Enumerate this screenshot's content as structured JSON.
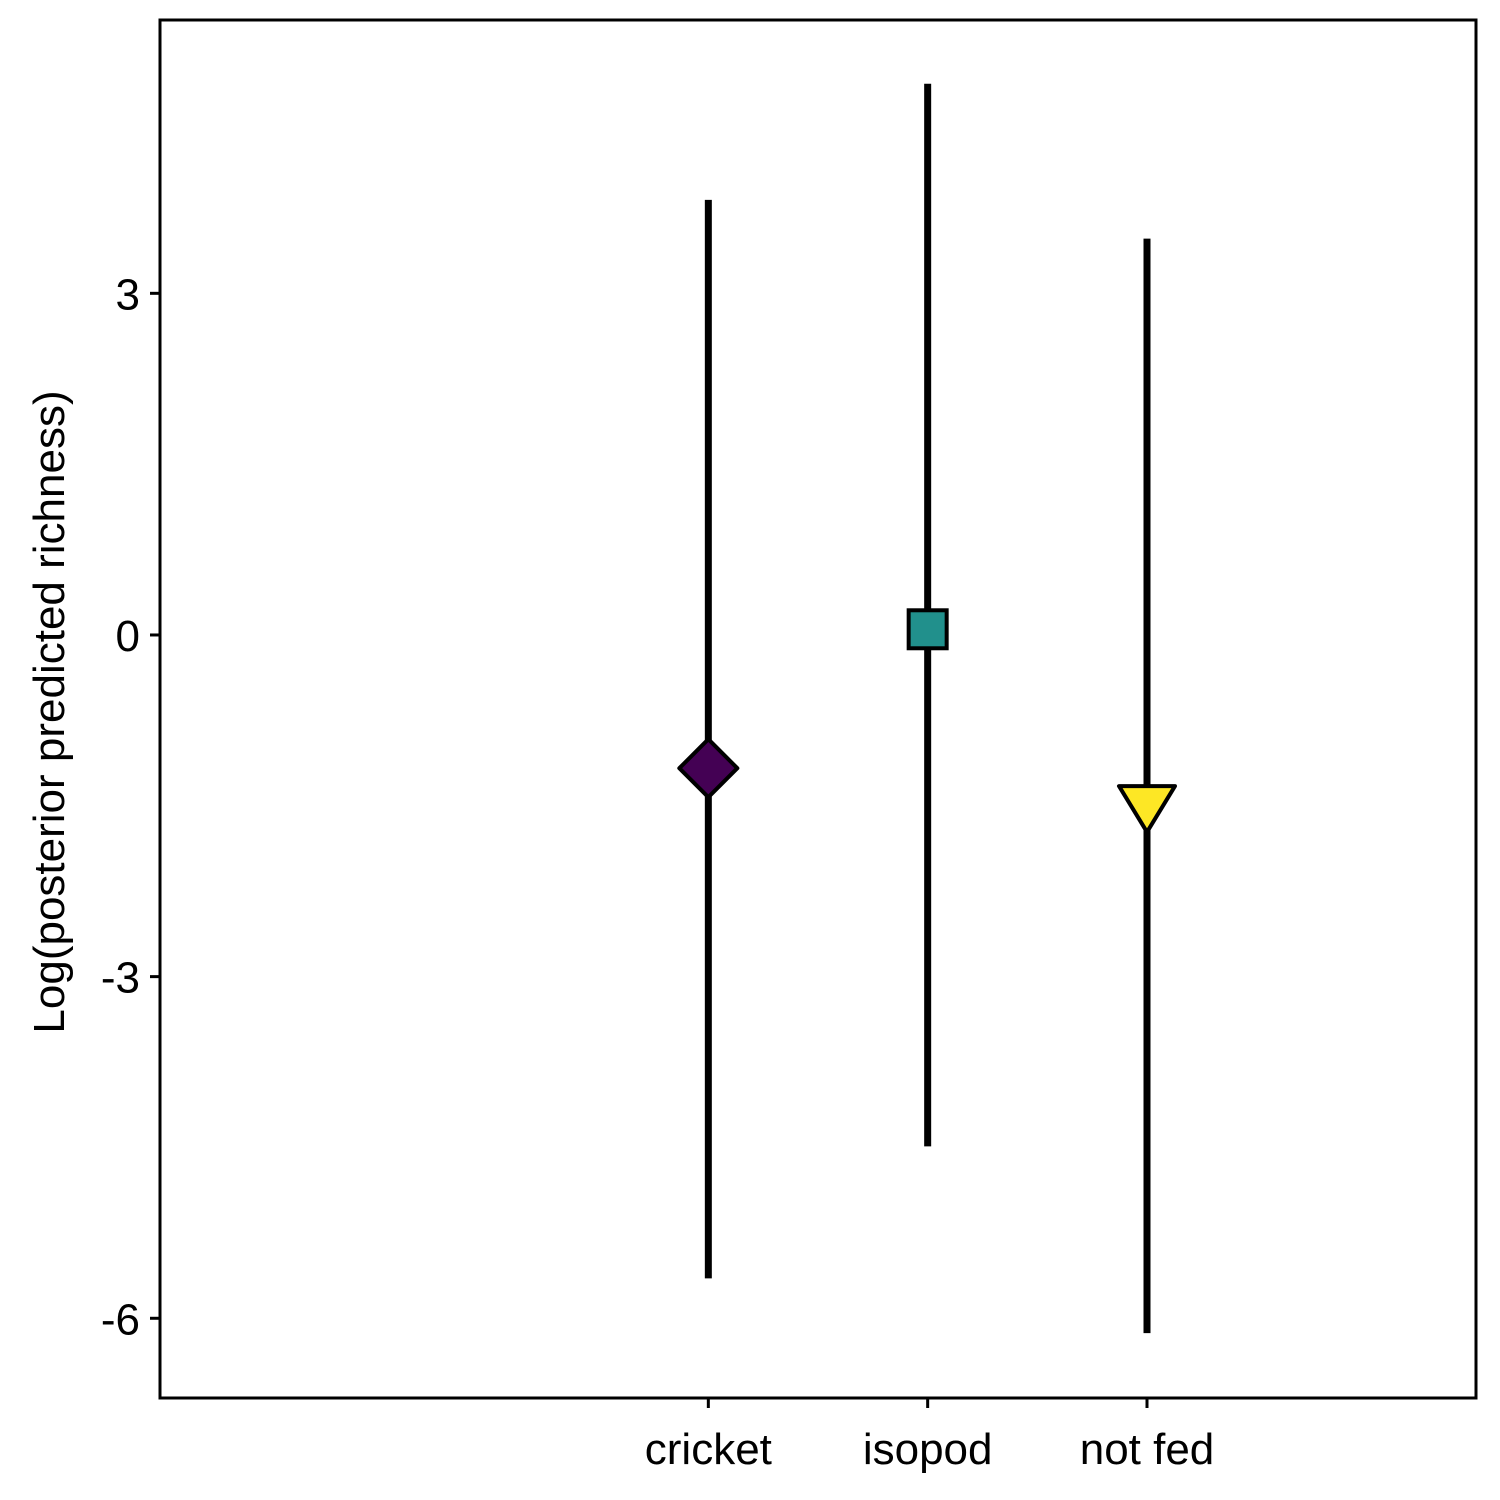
{
  "chart_data": {
    "type": "pointrange",
    "title": "",
    "xlabel": "",
    "ylabel": "Log(posterior predicted richness)",
    "categories": [
      "cricket",
      "isopod",
      "not fed"
    ],
    "estimates": [
      -1.17,
      0.05,
      -1.52
    ],
    "lower": [
      -5.65,
      -4.49,
      -6.13
    ],
    "upper": [
      3.82,
      4.84,
      3.48
    ],
    "markers": [
      "diamond",
      "square",
      "triangle-down"
    ],
    "colors": [
      "#440154",
      "#21908C",
      "#FDE725"
    ],
    "yticks": [
      3,
      0,
      -3,
      -6
    ],
    "ytick_labels": [
      "3",
      "0",
      "-3",
      "-6"
    ],
    "ylim": [
      -6.7,
      5.4
    ],
    "xlim": [
      -1.5,
      4.5
    ],
    "grid": false,
    "legend": "none"
  }
}
